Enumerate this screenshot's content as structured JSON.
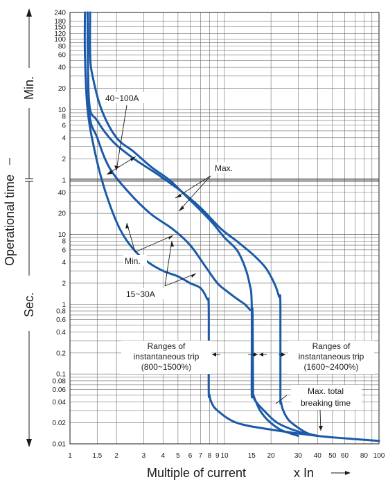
{
  "chart_data": {
    "type": "line",
    "title": "",
    "xlabel": "Multiple of current",
    "xlabel_unit": "x In",
    "ylabel": "Operational time",
    "yscale": "log",
    "xscale": "log",
    "xlim": [
      1,
      100
    ],
    "ylim_seconds": [
      0.01,
      14400
    ],
    "grid": true,
    "x_ticks": [
      "1",
      "1.5",
      "2",
      "3",
      "4",
      "5",
      "6",
      "7",
      "8",
      "9",
      "10",
      "15",
      "20",
      "30",
      "40",
      "50",
      "60",
      "80",
      "100"
    ],
    "y_ticks_min": [
      "240",
      "180",
      "150",
      "120",
      "100",
      "80",
      "60",
      "40",
      "20",
      "10",
      "8",
      "6",
      "4",
      "2",
      "1"
    ],
    "y_ticks_sec": [
      "40",
      "20",
      "10",
      "8",
      "6",
      "4",
      "2",
      "1",
      "0.8",
      "0.6",
      "0.4",
      "0.2",
      "0.1",
      "0.08",
      "0.06",
      "0.04",
      "0.02",
      "0.01"
    ],
    "y_unit_min": "Min.",
    "y_unit_sec": "Sec.",
    "series": [
      {
        "x": [
          1.25,
          1.25,
          1.3,
          1.45,
          1.7,
          2.1,
          2.6,
          3.2,
          4.0,
          5.0,
          6.0,
          7.0,
          7.7,
          7.9,
          7.9,
          8.0,
          8.2,
          9.0,
          12,
          20,
          40,
          60,
          100
        ],
        "y": [
          14400,
          3600,
          600,
          150,
          40,
          12,
          6,
          4,
          3,
          2.5,
          2,
          1.7,
          1.2,
          0.9,
          0.06,
          0.05,
          0.04,
          0.03,
          0.02,
          0.016,
          0.013,
          0.012,
          0.011
        ]
      },
      {
        "x": [
          1.35,
          1.35,
          1.4,
          1.6,
          2.0,
          2.6,
          3.4,
          4.4,
          5.6,
          7.0,
          8.5,
          10,
          12,
          13.5,
          14.5,
          15,
          15,
          15.2,
          16,
          18,
          22,
          30,
          40
        ],
        "y": [
          14400,
          3600,
          1800,
          600,
          240,
          150,
          90,
          60,
          36,
          22,
          14,
          9,
          6,
          3.5,
          2,
          1,
          0.06,
          0.05,
          0.04,
          0.03,
          0.02,
          0.015,
          0.013
        ]
      },
      {
        "x": [
          1.3,
          1.33,
          1.5,
          1.8,
          2.4,
          3.3,
          4.6,
          6,
          7.5,
          9,
          10.5,
          12,
          13.5,
          14.5,
          15,
          15.2,
          15.3,
          15.4,
          16,
          17,
          19,
          23,
          30
        ],
        "y": [
          14400,
          600,
          240,
          90,
          40,
          20,
          12,
          7,
          3.5,
          2,
          1.5,
          1.2,
          1,
          0.85,
          0.8,
          0.7,
          0.06,
          0.05,
          0.04,
          0.03,
          0.022,
          0.016,
          0.013
        ]
      },
      {
        "x": [
          1.3,
          1.33,
          1.5,
          1.9,
          2.6,
          3.7,
          5.2,
          7.0,
          9.5,
          12,
          15.5,
          18.5,
          21,
          22.5,
          23,
          23,
          23.2,
          24,
          26,
          30,
          35,
          40
        ],
        "y": [
          14400,
          780,
          420,
          210,
          120,
          72,
          42,
          24,
          12,
          8,
          5,
          3.3,
          2,
          1.3,
          1,
          0.05,
          0.04,
          0.03,
          0.022,
          0.017,
          0.014,
          0.013
        ]
      }
    ],
    "annotations": {
      "range_label_1": "40~100A",
      "range_label_2": "15~30A",
      "max_label": "Max.",
      "min_label": "Min.",
      "inst_trip_1_line1": "Ranges of",
      "inst_trip_1_line2": "instantaneous trip",
      "inst_trip_1_line3": "(800~1500%)",
      "inst_trip_2_line1": "Ranges of",
      "inst_trip_2_line2": "instantaneous trip",
      "inst_trip_2_line3": "(1600~2400%)",
      "break_line1": "Max. total",
      "break_line2": "breaking time"
    },
    "colors": {
      "curve": "#1a5aa8",
      "grid": "#6e6e6e",
      "text": "#1a1a1a"
    }
  }
}
